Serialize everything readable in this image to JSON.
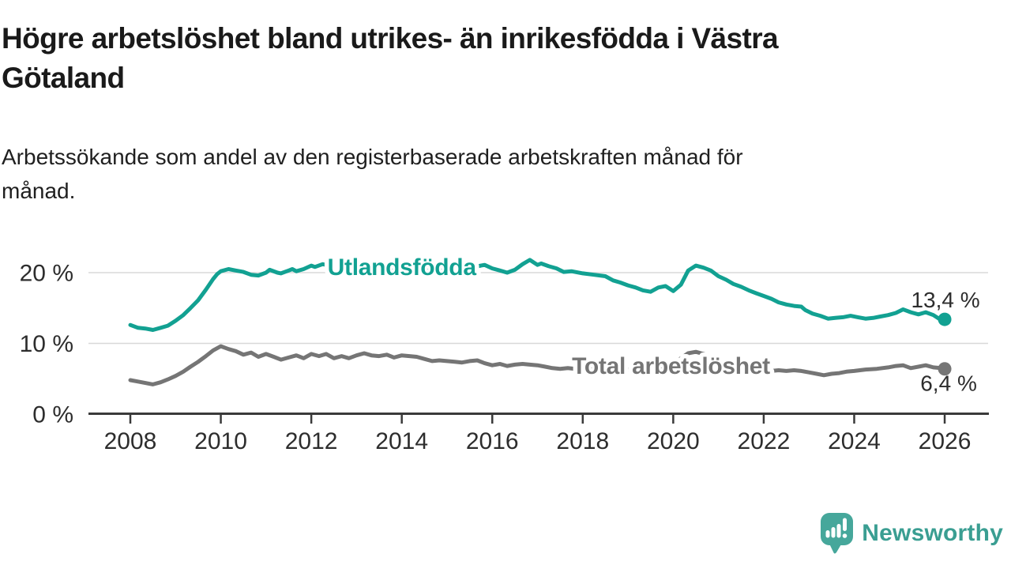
{
  "header": {
    "title": "Högre arbetslöshet bland utrikes- än inrikesfödda i Västra\nGötaland",
    "subtitle": "Arbetssökande som andel av den registerbaserade arbetskraften månad för\nmånad."
  },
  "chart_data": {
    "type": "line",
    "unit": "%",
    "grid": true,
    "x_axis": {
      "ticks": [
        2008,
        2010,
        2012,
        2014,
        2016,
        2018,
        2020,
        2022,
        2024,
        2026
      ],
      "tick_labels": [
        "2008",
        "2010",
        "2012",
        "2014",
        "2016",
        "2018",
        "2020",
        "2022",
        "2024",
        "2026"
      ],
      "range": [
        2007.1,
        2027.0
      ]
    },
    "y_axis": {
      "ticks": [
        0,
        10,
        20
      ],
      "tick_labels": [
        "0 %",
        "10 %",
        "20 %"
      ],
      "range": [
        0,
        24
      ]
    },
    "series": [
      {
        "name": "Utlandsfödda",
        "color": "#12a192",
        "inline_label": "Utlandsfödda",
        "inline_label_pos": {
          "year": 2014.0,
          "value": 20.8
        },
        "end_value": 13.4,
        "end_label": "13,4 %",
        "points": [
          [
            2008.0,
            12.6
          ],
          [
            2008.17,
            12.2
          ],
          [
            2008.33,
            12.1
          ],
          [
            2008.5,
            11.9
          ],
          [
            2008.67,
            12.2
          ],
          [
            2008.83,
            12.5
          ],
          [
            2009.0,
            13.2
          ],
          [
            2009.17,
            14.0
          ],
          [
            2009.33,
            15.0
          ],
          [
            2009.5,
            16.1
          ],
          [
            2009.67,
            17.6
          ],
          [
            2009.83,
            19.1
          ],
          [
            2009.92,
            19.8
          ],
          [
            2010.0,
            20.2
          ],
          [
            2010.17,
            20.5
          ],
          [
            2010.33,
            20.3
          ],
          [
            2010.5,
            20.1
          ],
          [
            2010.67,
            19.7
          ],
          [
            2010.83,
            19.6
          ],
          [
            2011.0,
            20.0
          ],
          [
            2011.08,
            20.4
          ],
          [
            2011.25,
            20.0
          ],
          [
            2011.33,
            19.9
          ],
          [
            2011.5,
            20.3
          ],
          [
            2011.58,
            20.5
          ],
          [
            2011.67,
            20.2
          ],
          [
            2011.83,
            20.5
          ],
          [
            2012.0,
            21.0
          ],
          [
            2012.08,
            20.8
          ],
          [
            2012.25,
            21.2
          ],
          [
            2012.42,
            21.0
          ],
          [
            2012.58,
            21.2
          ],
          [
            2012.75,
            20.9
          ],
          [
            2013.0,
            21.1
          ],
          [
            2013.25,
            20.8
          ],
          [
            2013.5,
            21.0
          ],
          [
            2013.75,
            20.7
          ],
          [
            2014.0,
            20.9
          ],
          [
            2014.25,
            20.6
          ],
          [
            2014.5,
            20.8
          ],
          [
            2014.75,
            20.5
          ],
          [
            2015.0,
            20.7
          ],
          [
            2015.25,
            20.9
          ],
          [
            2015.5,
            20.6
          ],
          [
            2015.75,
            21.0
          ],
          [
            2015.83,
            21.1
          ],
          [
            2016.0,
            20.6
          ],
          [
            2016.17,
            20.3
          ],
          [
            2016.33,
            20.0
          ],
          [
            2016.5,
            20.4
          ],
          [
            2016.67,
            21.2
          ],
          [
            2016.83,
            21.8
          ],
          [
            2017.0,
            21.1
          ],
          [
            2017.08,
            21.3
          ],
          [
            2017.25,
            20.9
          ],
          [
            2017.42,
            20.6
          ],
          [
            2017.58,
            20.1
          ],
          [
            2017.75,
            20.2
          ],
          [
            2018.0,
            19.9
          ],
          [
            2018.25,
            19.7
          ],
          [
            2018.5,
            19.5
          ],
          [
            2018.67,
            18.9
          ],
          [
            2018.83,
            18.6
          ],
          [
            2019.0,
            18.2
          ],
          [
            2019.17,
            17.9
          ],
          [
            2019.33,
            17.5
          ],
          [
            2019.5,
            17.3
          ],
          [
            2019.67,
            17.9
          ],
          [
            2019.83,
            18.1
          ],
          [
            2020.0,
            17.4
          ],
          [
            2020.17,
            18.3
          ],
          [
            2020.33,
            20.3
          ],
          [
            2020.5,
            21.0
          ],
          [
            2020.67,
            20.7
          ],
          [
            2020.83,
            20.3
          ],
          [
            2021.0,
            19.5
          ],
          [
            2021.17,
            19.0
          ],
          [
            2021.33,
            18.4
          ],
          [
            2021.5,
            18.0
          ],
          [
            2021.67,
            17.5
          ],
          [
            2021.83,
            17.1
          ],
          [
            2022.0,
            16.7
          ],
          [
            2022.17,
            16.3
          ],
          [
            2022.33,
            15.8
          ],
          [
            2022.5,
            15.5
          ],
          [
            2022.67,
            15.3
          ],
          [
            2022.83,
            15.2
          ],
          [
            2022.92,
            14.7
          ],
          [
            2023.08,
            14.2
          ],
          [
            2023.25,
            13.9
          ],
          [
            2023.42,
            13.5
          ],
          [
            2023.58,
            13.6
          ],
          [
            2023.75,
            13.7
          ],
          [
            2023.92,
            13.9
          ],
          [
            2024.08,
            13.7
          ],
          [
            2024.25,
            13.5
          ],
          [
            2024.42,
            13.6
          ],
          [
            2024.58,
            13.8
          ],
          [
            2024.75,
            14.0
          ],
          [
            2024.92,
            14.3
          ],
          [
            2025.08,
            14.8
          ],
          [
            2025.25,
            14.4
          ],
          [
            2025.42,
            14.1
          ],
          [
            2025.58,
            14.4
          ],
          [
            2025.75,
            14.0
          ],
          [
            2025.92,
            13.3
          ],
          [
            2026.0,
            13.4
          ]
        ]
      },
      {
        "name": "Total arbetslöshet",
        "color": "#757575",
        "inline_label": "Total arbetslöshet",
        "inline_label_pos": {
          "year": 2019.95,
          "value": 6.8
        },
        "end_value": 6.4,
        "end_label": "6,4 %",
        "points": [
          [
            2008.0,
            4.8
          ],
          [
            2008.17,
            4.6
          ],
          [
            2008.33,
            4.4
          ],
          [
            2008.5,
            4.2
          ],
          [
            2008.67,
            4.5
          ],
          [
            2008.83,
            4.9
          ],
          [
            2009.0,
            5.4
          ],
          [
            2009.17,
            6.0
          ],
          [
            2009.33,
            6.7
          ],
          [
            2009.5,
            7.4
          ],
          [
            2009.67,
            8.2
          ],
          [
            2009.83,
            9.0
          ],
          [
            2010.0,
            9.6
          ],
          [
            2010.17,
            9.2
          ],
          [
            2010.33,
            8.9
          ],
          [
            2010.5,
            8.4
          ],
          [
            2010.67,
            8.7
          ],
          [
            2010.83,
            8.1
          ],
          [
            2011.0,
            8.5
          ],
          [
            2011.17,
            8.1
          ],
          [
            2011.33,
            7.7
          ],
          [
            2011.5,
            8.0
          ],
          [
            2011.67,
            8.3
          ],
          [
            2011.83,
            7.9
          ],
          [
            2012.0,
            8.5
          ],
          [
            2012.17,
            8.2
          ],
          [
            2012.33,
            8.5
          ],
          [
            2012.5,
            7.9
          ],
          [
            2012.67,
            8.2
          ],
          [
            2012.83,
            7.9
          ],
          [
            2013.0,
            8.3
          ],
          [
            2013.17,
            8.6
          ],
          [
            2013.33,
            8.3
          ],
          [
            2013.5,
            8.2
          ],
          [
            2013.67,
            8.4
          ],
          [
            2013.83,
            8.0
          ],
          [
            2014.0,
            8.3
          ],
          [
            2014.17,
            8.2
          ],
          [
            2014.33,
            8.1
          ],
          [
            2014.5,
            7.8
          ],
          [
            2014.67,
            7.5
          ],
          [
            2014.83,
            7.6
          ],
          [
            2015.0,
            7.5
          ],
          [
            2015.17,
            7.4
          ],
          [
            2015.33,
            7.3
          ],
          [
            2015.5,
            7.5
          ],
          [
            2015.67,
            7.6
          ],
          [
            2015.83,
            7.2
          ],
          [
            2016.0,
            6.9
          ],
          [
            2016.17,
            7.1
          ],
          [
            2016.33,
            6.8
          ],
          [
            2016.5,
            7.0
          ],
          [
            2016.67,
            7.1
          ],
          [
            2016.83,
            7.0
          ],
          [
            2017.0,
            6.9
          ],
          [
            2017.17,
            6.7
          ],
          [
            2017.33,
            6.5
          ],
          [
            2017.5,
            6.4
          ],
          [
            2017.67,
            6.5
          ],
          [
            2017.83,
            6.4
          ],
          [
            2018.0,
            6.5
          ],
          [
            2018.25,
            6.4
          ],
          [
            2018.5,
            6.3
          ],
          [
            2018.75,
            6.4
          ],
          [
            2019.0,
            6.3
          ],
          [
            2019.25,
            6.2
          ],
          [
            2019.5,
            6.3
          ],
          [
            2019.75,
            6.5
          ],
          [
            2020.0,
            7.0
          ],
          [
            2020.17,
            7.9
          ],
          [
            2020.33,
            8.6
          ],
          [
            2020.5,
            8.8
          ],
          [
            2020.67,
            8.5
          ],
          [
            2020.83,
            8.2
          ],
          [
            2021.0,
            7.8
          ],
          [
            2021.25,
            7.3
          ],
          [
            2021.5,
            6.9
          ],
          [
            2021.75,
            6.5
          ],
          [
            2022.0,
            6.3
          ],
          [
            2022.17,
            6.1
          ],
          [
            2022.33,
            6.2
          ],
          [
            2022.5,
            6.1
          ],
          [
            2022.67,
            6.2
          ],
          [
            2022.83,
            6.1
          ],
          [
            2023.0,
            5.9
          ],
          [
            2023.17,
            5.7
          ],
          [
            2023.33,
            5.5
          ],
          [
            2023.5,
            5.7
          ],
          [
            2023.67,
            5.8
          ],
          [
            2023.83,
            6.0
          ],
          [
            2024.0,
            6.1
          ],
          [
            2024.25,
            6.3
          ],
          [
            2024.5,
            6.4
          ],
          [
            2024.75,
            6.6
          ],
          [
            2024.92,
            6.8
          ],
          [
            2025.08,
            6.9
          ],
          [
            2025.25,
            6.5
          ],
          [
            2025.42,
            6.7
          ],
          [
            2025.58,
            6.9
          ],
          [
            2025.75,
            6.6
          ],
          [
            2025.92,
            6.5
          ],
          [
            2026.0,
            6.4
          ]
        ]
      }
    ]
  },
  "branding": {
    "logo_text": "Newsworthy",
    "logo_color": "#3a9e92",
    "logo_icon": "newsworthy-speech-bubble-bar-chart-icon"
  }
}
